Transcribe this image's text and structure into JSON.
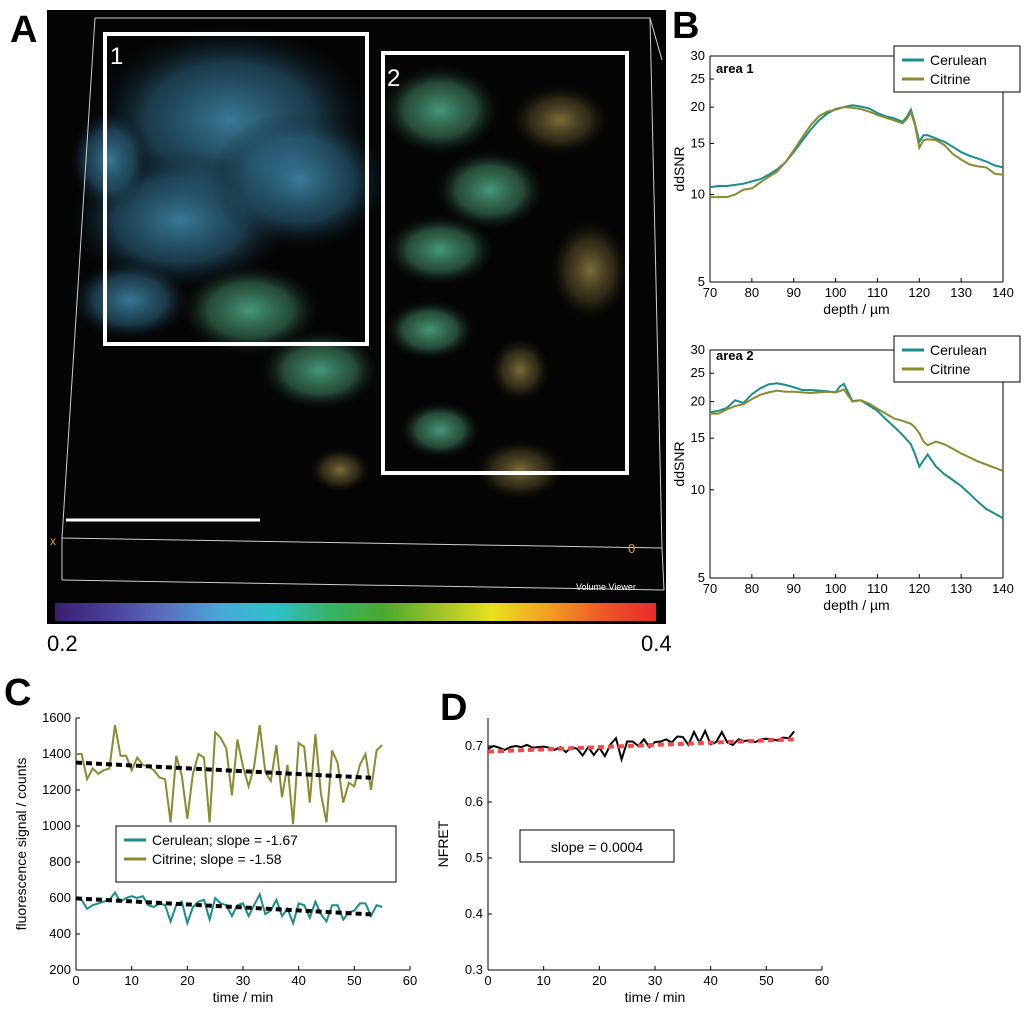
{
  "panels": {
    "a_label": "A",
    "b_label": "B",
    "c_label": "C",
    "d_label": "D"
  },
  "image_panel": {
    "box1_label": "1",
    "box2_label": "2",
    "viewer_caption": "Volume Viewer",
    "corner_marker_left": "x",
    "corner_marker_right": "0",
    "colorbar_min": "0.2",
    "colorbar_max": "0.4",
    "colorbar_colors": [
      "#3a1f6e",
      "#4b3f9a",
      "#5a6ec0",
      "#4aa6d9",
      "#2fc0c8",
      "#36b36a",
      "#4aa82e",
      "#9cc228",
      "#e8e020",
      "#f2a020",
      "#ee5a28",
      "#e82a2a"
    ]
  },
  "colors": {
    "cerulean": "#1a8c8c",
    "citrine": "#8a8a32",
    "fit": "#000000",
    "nfret_fit": "#f04a4a"
  },
  "chart_data": [
    {
      "id": "B1",
      "type": "line",
      "title": "area 1",
      "xlabel": "depth / µm",
      "ylabel": "ddSNR",
      "yscale": "log",
      "xlim": [
        70,
        140
      ],
      "ylim": [
        5,
        30
      ],
      "xticks": [
        70,
        80,
        90,
        100,
        110,
        120,
        130,
        140
      ],
      "yticks": [
        5,
        10,
        15,
        20,
        25,
        30
      ],
      "legend": [
        "Cerulean",
        "Citrine"
      ],
      "x": [
        70,
        72,
        74,
        76,
        78,
        80,
        82,
        84,
        86,
        88,
        90,
        92,
        94,
        96,
        98,
        100,
        102,
        104,
        106,
        108,
        110,
        112,
        114,
        116,
        117,
        118,
        119,
        120,
        121,
        122,
        124,
        126,
        128,
        130,
        132,
        134,
        136,
        138,
        140
      ],
      "series": [
        {
          "name": "Cerulean",
          "values": [
            10.6,
            10.7,
            10.7,
            10.8,
            10.9,
            11.1,
            11.3,
            11.7,
            12.2,
            12.9,
            14.0,
            15.3,
            16.7,
            18.0,
            19.0,
            19.7,
            20.0,
            20.3,
            20.1,
            19.8,
            19.1,
            18.6,
            18.3,
            17.8,
            18.5,
            19.6,
            17.5,
            15.2,
            16.0,
            16.0,
            15.6,
            15.2,
            14.6,
            14.0,
            13.6,
            13.3,
            13.0,
            12.6,
            12.4
          ]
        },
        {
          "name": "Citrine",
          "values": [
            9.8,
            9.8,
            9.8,
            10.0,
            10.4,
            10.5,
            11.0,
            11.5,
            12.0,
            12.9,
            14.2,
            15.7,
            17.3,
            18.6,
            19.3,
            19.6,
            20.0,
            19.9,
            19.7,
            19.3,
            18.8,
            18.4,
            18.0,
            17.6,
            18.2,
            19.2,
            17.3,
            14.5,
            15.4,
            15.5,
            15.4,
            14.8,
            13.8,
            13.2,
            12.7,
            12.5,
            12.4,
            11.8,
            11.7
          ]
        }
      ]
    },
    {
      "id": "B2",
      "type": "line",
      "title": "area 2",
      "xlabel": "depth / µm",
      "ylabel": "ddSNR",
      "yscale": "log",
      "xlim": [
        70,
        140
      ],
      "ylim": [
        5,
        30
      ],
      "xticks": [
        70,
        80,
        90,
        100,
        110,
        120,
        130,
        140
      ],
      "yticks": [
        5,
        10,
        15,
        20,
        25,
        30
      ],
      "legend": [
        "Cerulean",
        "Citrine"
      ],
      "x": [
        70,
        72,
        74,
        76,
        78,
        80,
        82,
        84,
        86,
        88,
        90,
        92,
        94,
        96,
        98,
        100,
        101,
        102,
        103,
        104,
        106,
        108,
        110,
        112,
        114,
        116,
        118,
        119,
        120,
        121,
        122,
        124,
        126,
        128,
        130,
        132,
        134,
        136,
        138,
        140
      ],
      "series": [
        {
          "name": "Cerulean",
          "values": [
            18.4,
            18.6,
            19.0,
            20.2,
            19.8,
            21.2,
            22.2,
            22.9,
            23.1,
            22.8,
            22.4,
            21.9,
            21.9,
            21.8,
            21.7,
            21.5,
            22.5,
            23.0,
            21.5,
            20.1,
            20.2,
            19.4,
            18.6,
            17.4,
            16.4,
            15.4,
            14.3,
            13.2,
            12.0,
            12.6,
            13.2,
            12.0,
            11.3,
            10.8,
            10.3,
            9.7,
            9.1,
            8.6,
            8.3,
            8.0
          ]
        },
        {
          "name": "Citrine",
          "values": [
            18.2,
            18.2,
            18.8,
            19.3,
            19.6,
            20.4,
            21.1,
            21.5,
            21.8,
            21.6,
            21.6,
            21.5,
            21.4,
            21.5,
            21.6,
            21.5,
            21.7,
            22.0,
            21.0,
            20.0,
            20.2,
            19.7,
            18.9,
            18.2,
            17.5,
            17.2,
            16.8,
            16.3,
            15.6,
            14.6,
            14.2,
            14.6,
            14.3,
            13.8,
            13.3,
            12.9,
            12.5,
            12.2,
            11.9,
            11.6
          ]
        }
      ]
    },
    {
      "id": "C",
      "type": "line",
      "xlabel": "time / min",
      "ylabel": "fluorescence signal / counts",
      "xlim": [
        0,
        60
      ],
      "ylim": [
        200,
        1600
      ],
      "xticks": [
        0,
        10,
        20,
        30,
        40,
        50,
        60
      ],
      "yticks": [
        200,
        400,
        600,
        800,
        1000,
        1200,
        1400,
        1600
      ],
      "legend": [
        "Cerulean; slope = -1.67",
        "Citrine; slope = -1.58"
      ],
      "x": [
        0,
        1,
        2,
        3,
        4,
        5,
        6,
        7,
        8,
        9,
        10,
        11,
        12,
        13,
        14,
        15,
        16,
        17,
        18,
        19,
        20,
        21,
        22,
        23,
        24,
        25,
        26,
        27,
        28,
        29,
        30,
        31,
        32,
        33,
        34,
        35,
        36,
        37,
        38,
        39,
        40,
        41,
        42,
        43,
        44,
        45,
        46,
        47,
        48,
        49,
        50,
        51,
        52,
        53,
        54,
        55
      ],
      "series": [
        {
          "name": "Citrine",
          "values": [
            1400,
            1400,
            1260,
            1320,
            1290,
            1310,
            1320,
            1560,
            1390,
            1390,
            1310,
            1380,
            1340,
            1330,
            1310,
            1270,
            1260,
            1020,
            1390,
            1280,
            1040,
            1290,
            1400,
            1380,
            1020,
            1520,
            1490,
            1430,
            1170,
            1480,
            1330,
            1220,
            1330,
            1560,
            1300,
            1250,
            1450,
            1160,
            1340,
            1010,
            1460,
            1440,
            1130,
            1510,
            1180,
            1020,
            1420,
            1350,
            1130,
            1240,
            1220,
            1340,
            1400,
            1200,
            1420,
            1450
          ]
        },
        {
          "name": "Cerulean",
          "values": [
            600,
            590,
            540,
            560,
            570,
            580,
            590,
            630,
            580,
            600,
            610,
            600,
            610,
            560,
            550,
            570,
            560,
            470,
            560,
            580,
            460,
            550,
            580,
            590,
            480,
            600,
            570,
            560,
            500,
            560,
            570,
            500,
            560,
            620,
            510,
            530,
            590,
            500,
            540,
            460,
            570,
            560,
            490,
            580,
            510,
            470,
            560,
            560,
            480,
            520,
            530,
            570,
            570,
            500,
            560,
            550
          ]
        },
        {
          "name": "Citrine fit",
          "fit": true,
          "x": [
            0,
            53
          ],
          "values": [
            1352,
            1268
          ]
        },
        {
          "name": "Cerulean fit",
          "fit": true,
          "x": [
            0,
            53
          ],
          "values": [
            598,
            509
          ]
        }
      ]
    },
    {
      "id": "D",
      "type": "line",
      "xlabel": "time / min",
      "ylabel": "NFRET",
      "xlim": [
        0,
        60
      ],
      "ylim": [
        0.3,
        0.75
      ],
      "xticks": [
        0,
        10,
        20,
        30,
        40,
        50,
        60
      ],
      "yticks": [
        0.3,
        0.4,
        0.5,
        0.6,
        0.7
      ],
      "annotation": "slope = 0.0004",
      "x": [
        0,
        1,
        2,
        3,
        4,
        5,
        6,
        7,
        8,
        9,
        10,
        11,
        12,
        13,
        14,
        15,
        16,
        17,
        18,
        19,
        20,
        21,
        22,
        23,
        24,
        25,
        26,
        27,
        28,
        29,
        30,
        31,
        32,
        33,
        34,
        35,
        36,
        37,
        38,
        39,
        40,
        41,
        42,
        43,
        44,
        45,
        46,
        47,
        48,
        49,
        50,
        51,
        52,
        53,
        54,
        55
      ],
      "series": [
        {
          "name": "NFRET",
          "values": [
            0.695,
            0.7,
            0.697,
            0.693,
            0.698,
            0.7,
            0.698,
            0.702,
            0.697,
            0.698,
            0.699,
            0.697,
            0.693,
            0.698,
            0.689,
            0.698,
            0.695,
            0.683,
            0.698,
            0.684,
            0.697,
            0.682,
            0.703,
            0.714,
            0.676,
            0.708,
            0.708,
            0.7,
            0.712,
            0.698,
            0.707,
            0.708,
            0.712,
            0.706,
            0.717,
            0.716,
            0.702,
            0.725,
            0.706,
            0.727,
            0.703,
            0.707,
            0.725,
            0.706,
            0.702,
            0.712,
            0.709,
            0.71,
            0.707,
            0.712,
            0.713,
            0.712,
            0.71,
            0.715,
            0.714,
            0.726
          ]
        },
        {
          "name": "NFRET fit",
          "fit": true,
          "x": [
            0,
            55
          ],
          "values": [
            0.69,
            0.712
          ]
        }
      ]
    }
  ]
}
